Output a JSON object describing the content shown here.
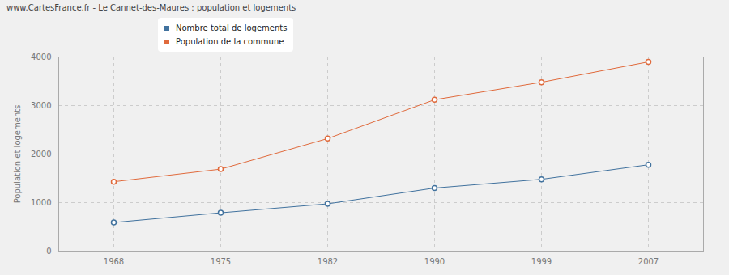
{
  "chart_data": {
    "type": "line",
    "title": "www.CartesFrance.fr - Le Cannet-des-Maures : population et logements",
    "y_label": "Population et logements",
    "categories": [
      "1968",
      "1975",
      "1982",
      "1990",
      "1999",
      "2007"
    ],
    "series": [
      {
        "name": "Nombre total de logements",
        "color": "#41729e",
        "values": [
          590,
          790,
          975,
          1300,
          1480,
          1780
        ]
      },
      {
        "name": "Population de la commune",
        "color": "#e06a3c",
        "values": [
          1430,
          1690,
          2320,
          3120,
          3480,
          3900
        ]
      }
    ],
    "ylim": [
      0,
      4000
    ],
    "yticks": [
      0,
      1000,
      2000,
      3000,
      4000
    ],
    "grid": true,
    "legend": "top",
    "marker": "circle"
  }
}
